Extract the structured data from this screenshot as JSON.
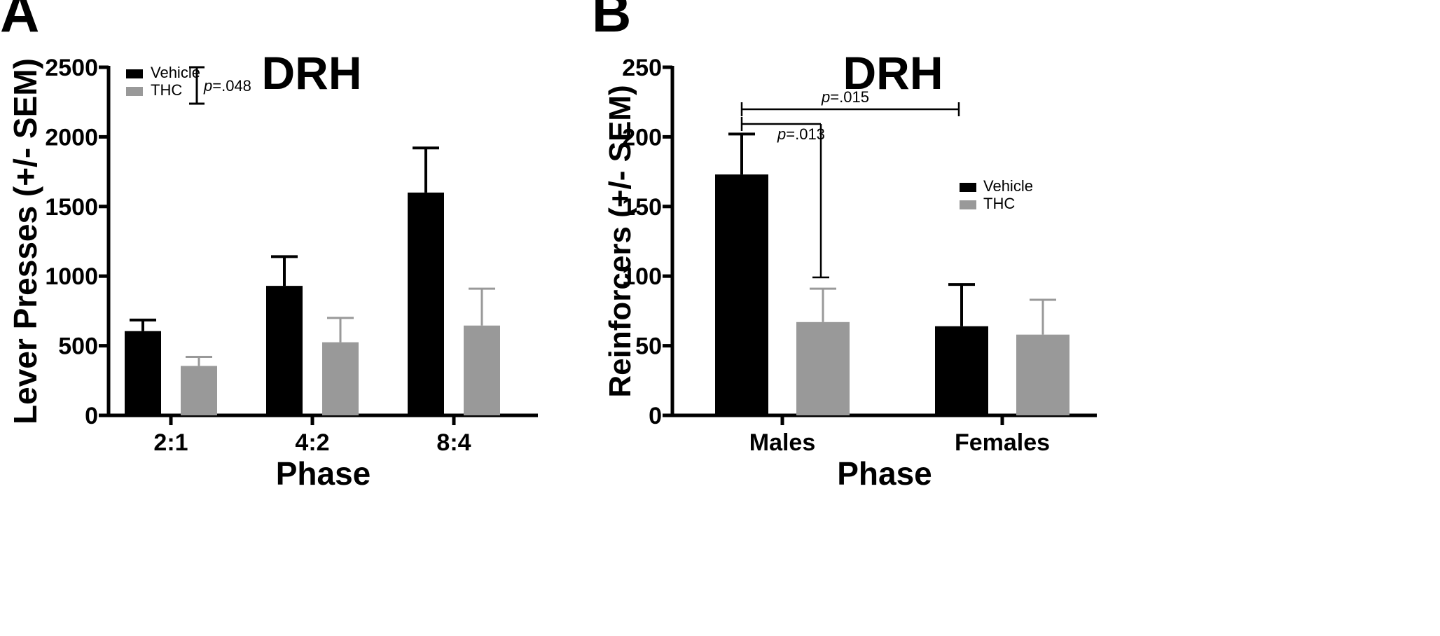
{
  "chart_data": [
    {
      "panel": "A",
      "type": "bar",
      "title": "DRH",
      "xlabel": "Phase",
      "ylabel": "Lever Presses (+/- SEM)",
      "categories": [
        "2:1",
        "4:2",
        "8:4"
      ],
      "series": [
        {
          "name": "Vehicle",
          "color": "#000000",
          "values": [
            605,
            930,
            1600
          ],
          "sem": [
            80,
            210,
            320
          ]
        },
        {
          "name": "THC",
          "color": "#999999",
          "values": [
            355,
            525,
            645
          ],
          "sem": [
            65,
            175,
            265
          ]
        }
      ],
      "ylim": [
        0,
        2500
      ],
      "yticks": [
        "0",
        "500",
        "1000",
        "1500",
        "2000",
        "2500"
      ],
      "legend": "top-left",
      "grid": false,
      "annotations": [
        {
          "italic": "p",
          "text": "=.048",
          "between": "Vehicle vs THC"
        }
      ]
    },
    {
      "panel": "B",
      "type": "bar",
      "title": "DRH",
      "xlabel": "Phase",
      "ylabel": "Reinforcers (+/- SEM)",
      "categories": [
        "Males",
        "Females"
      ],
      "series": [
        {
          "name": "Vehicle",
          "color": "#000000",
          "values": [
            173,
            64
          ],
          "sem": [
            29,
            30
          ]
        },
        {
          "name": "THC",
          "color": "#999999",
          "values": [
            67,
            58
          ],
          "sem": [
            24,
            25
          ]
        }
      ],
      "ylim": [
        0,
        250
      ],
      "yticks": [
        "0",
        "50",
        "100",
        "150",
        "200",
        "250"
      ],
      "legend": "right",
      "grid": false,
      "annotations": [
        {
          "italic": "p",
          "text": "=.015",
          "between": "Males Vehicle vs Females Vehicle"
        },
        {
          "italic": "p",
          "text": "=.013",
          "between": "Males Vehicle vs Males THC"
        }
      ]
    }
  ]
}
